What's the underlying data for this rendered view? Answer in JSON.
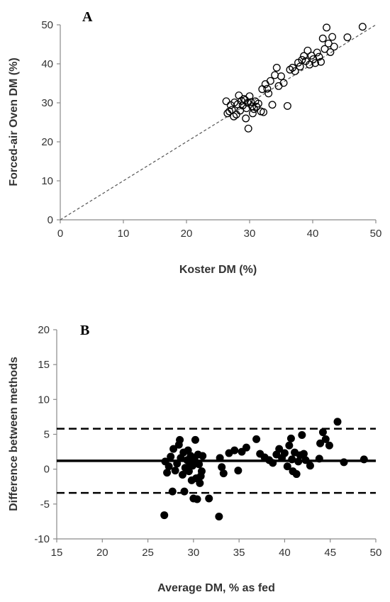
{
  "chart_data": [
    {
      "type": "scatter",
      "panel_label": "A",
      "xlabel": "Koster DM (%)",
      "ylabel": "Forced-air Oven DM (%)",
      "xlim": [
        0,
        50
      ],
      "ylim": [
        0,
        50
      ],
      "xticks": [
        0,
        10,
        20,
        30,
        40,
        50
      ],
      "yticks": [
        0,
        10,
        20,
        30,
        40,
        50
      ],
      "grid": false,
      "marker": "open-circle",
      "reference_line": {
        "style": "dashed",
        "points": [
          [
            0,
            0
          ],
          [
            50,
            50
          ]
        ]
      },
      "points": [
        [
          26.3,
          30.4
        ],
        [
          26.5,
          27.3
        ],
        [
          26.8,
          27.8
        ],
        [
          27.0,
          29.4
        ],
        [
          27.2,
          28.2
        ],
        [
          27.5,
          26.5
        ],
        [
          27.6,
          30.1
        ],
        [
          27.9,
          27.0
        ],
        [
          28.1,
          29.6
        ],
        [
          28.3,
          31.9
        ],
        [
          28.5,
          28.0
        ],
        [
          28.7,
          30.5
        ],
        [
          28.9,
          29.3
        ],
        [
          29.1,
          31.0
        ],
        [
          29.3,
          30.7
        ],
        [
          29.4,
          26.0
        ],
        [
          29.5,
          28.6
        ],
        [
          29.7,
          30.0
        ],
        [
          29.8,
          23.4
        ],
        [
          30.0,
          31.7
        ],
        [
          30.2,
          30.2
        ],
        [
          30.4,
          29.1
        ],
        [
          30.5,
          27.3
        ],
        [
          30.7,
          28.4
        ],
        [
          30.9,
          30.4
        ],
        [
          31.1,
          29.0
        ],
        [
          31.4,
          29.8
        ],
        [
          31.8,
          27.8
        ],
        [
          32.0,
          33.5
        ],
        [
          32.2,
          27.6
        ],
        [
          32.5,
          34.8
        ],
        [
          32.8,
          33.6
        ],
        [
          33.0,
          32.4
        ],
        [
          33.3,
          35.6
        ],
        [
          33.6,
          29.5
        ],
        [
          34.0,
          37.1
        ],
        [
          34.3,
          39.0
        ],
        [
          34.6,
          34.3
        ],
        [
          35.0,
          36.8
        ],
        [
          35.4,
          35.1
        ],
        [
          36.0,
          29.2
        ],
        [
          36.4,
          38.5
        ],
        [
          36.8,
          39.0
        ],
        [
          37.2,
          38.1
        ],
        [
          37.7,
          40.3
        ],
        [
          38.0,
          39.3
        ],
        [
          38.3,
          41.0
        ],
        [
          38.6,
          42.0
        ],
        [
          38.9,
          40.7
        ],
        [
          39.2,
          43.4
        ],
        [
          39.5,
          39.8
        ],
        [
          39.8,
          42.1
        ],
        [
          40.1,
          41.2
        ],
        [
          40.4,
          40.2
        ],
        [
          40.7,
          42.9
        ],
        [
          41.0,
          41.8
        ],
        [
          41.3,
          40.5
        ],
        [
          41.6,
          46.5
        ],
        [
          41.9,
          43.8
        ],
        [
          42.2,
          49.3
        ],
        [
          42.5,
          45.2
        ],
        [
          42.8,
          43.0
        ],
        [
          43.1,
          46.9
        ],
        [
          43.4,
          44.4
        ],
        [
          45.5,
          46.8
        ],
        [
          47.9,
          49.5
        ]
      ]
    },
    {
      "type": "scatter",
      "panel_label": "B",
      "xlabel": "Average DM, % as fed",
      "ylabel": "Difference between methods",
      "xlim": [
        15,
        50
      ],
      "ylim": [
        -10,
        20
      ],
      "xticks": [
        15,
        20,
        25,
        30,
        35,
        40,
        45,
        50
      ],
      "yticks": [
        -10,
        -5,
        0,
        5,
        10,
        15,
        20
      ],
      "grid": false,
      "marker": "filled-circle",
      "mean_line": {
        "style": "solid",
        "y": 1.2
      },
      "limit_lines": [
        {
          "style": "dashed",
          "y": 5.8
        },
        {
          "style": "dashed",
          "y": -3.4
        }
      ],
      "points": [
        [
          26.8,
          -6.6
        ],
        [
          26.9,
          1.1
        ],
        [
          27.1,
          -0.5
        ],
        [
          27.3,
          0.4
        ],
        [
          27.5,
          1.8
        ],
        [
          27.7,
          -3.2
        ],
        [
          27.8,
          2.9
        ],
        [
          28.0,
          -0.2
        ],
        [
          28.2,
          0.8
        ],
        [
          28.4,
          3.5
        ],
        [
          28.5,
          4.2
        ],
        [
          28.6,
          1.6
        ],
        [
          28.8,
          -0.8
        ],
        [
          28.9,
          2.4
        ],
        [
          29.0,
          -3.2
        ],
        [
          29.1,
          0.2
        ],
        [
          29.3,
          1.3
        ],
        [
          29.4,
          2.7
        ],
        [
          29.5,
          -0.3
        ],
        [
          29.6,
          0.9
        ],
        [
          29.7,
          1.9
        ],
        [
          29.8,
          -1.6
        ],
        [
          29.9,
          0.5
        ],
        [
          30.0,
          -4.2
        ],
        [
          30.1,
          1.4
        ],
        [
          30.2,
          4.2
        ],
        [
          30.3,
          -1.3
        ],
        [
          30.4,
          -4.3
        ],
        [
          30.5,
          2.1
        ],
        [
          30.6,
          0.7
        ],
        [
          30.7,
          -2.0
        ],
        [
          30.8,
          -1.0
        ],
        [
          30.9,
          -0.3
        ],
        [
          31.0,
          1.9
        ],
        [
          31.7,
          -4.2
        ],
        [
          32.8,
          -6.8
        ],
        [
          32.9,
          1.6
        ],
        [
          33.1,
          0.3
        ],
        [
          33.3,
          -0.6
        ],
        [
          33.9,
          2.3
        ],
        [
          34.5,
          2.7
        ],
        [
          34.9,
          -0.2
        ],
        [
          35.3,
          2.5
        ],
        [
          35.8,
          3.1
        ],
        [
          36.9,
          4.3
        ],
        [
          37.3,
          2.2
        ],
        [
          37.8,
          1.7
        ],
        [
          38.3,
          1.3
        ],
        [
          38.7,
          0.9
        ],
        [
          39.1,
          2.1
        ],
        [
          39.4,
          2.9
        ],
        [
          39.7,
          1.6
        ],
        [
          40.0,
          2.3
        ],
        [
          40.3,
          0.4
        ],
        [
          40.5,
          3.4
        ],
        [
          40.7,
          4.4
        ],
        [
          40.8,
          1.4
        ],
        [
          40.9,
          -0.3
        ],
        [
          41.1,
          2.4
        ],
        [
          41.3,
          -0.7
        ],
        [
          41.5,
          1.1
        ],
        [
          41.7,
          2.0
        ],
        [
          41.9,
          4.9
        ],
        [
          42.1,
          2.2
        ],
        [
          42.3,
          1.3
        ],
        [
          42.8,
          0.5
        ],
        [
          43.8,
          1.5
        ],
        [
          43.9,
          3.7
        ],
        [
          44.2,
          5.3
        ],
        [
          44.5,
          4.3
        ],
        [
          44.9,
          3.4
        ],
        [
          45.8,
          6.8
        ],
        [
          46.5,
          1.0
        ],
        [
          48.7,
          1.4
        ]
      ]
    }
  ]
}
